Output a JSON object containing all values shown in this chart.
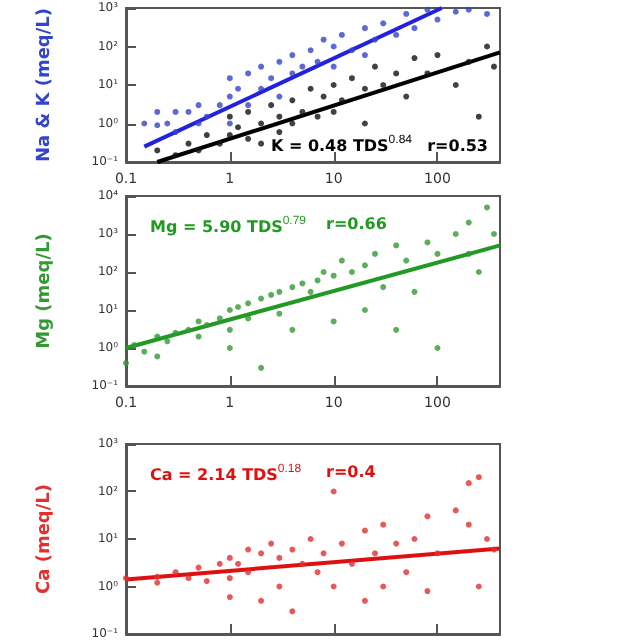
{
  "chart_data": [
    {
      "type": "scatter",
      "ylabel": "Na & K (meq/L)",
      "xlim": [
        0.1,
        400
      ],
      "ylim": [
        0.1,
        1000
      ],
      "log": "xy",
      "grid": false,
      "marker": "circle",
      "xticks": [
        0.1,
        1,
        10,
        100
      ],
      "yticks": [
        {
          "value": 0.1,
          "label": "10⁻¹"
        },
        {
          "value": 1,
          "label": "10⁰"
        },
        {
          "value": 10,
          "label": "10¹"
        },
        {
          "value": 100,
          "label": "10²"
        },
        {
          "value": 1000,
          "label": "10³"
        }
      ],
      "annotations": [
        "K = 0.48 TDS$^{0.84}$",
        "r=0.53"
      ],
      "series": [
        {
          "color": "#3344cc",
          "x": [
            0.15,
            0.2,
            0.2,
            0.25,
            0.3,
            0.3,
            0.4,
            0.5,
            0.5,
            0.6,
            0.8,
            1,
            1,
            1,
            1.2,
            1.5,
            1.5,
            2,
            2,
            2.5,
            3,
            3,
            4,
            4,
            5,
            6,
            7,
            8,
            10,
            10,
            12,
            15,
            20,
            20,
            25,
            30,
            40,
            50,
            60,
            80,
            100,
            150,
            200,
            300
          ],
          "values": [
            1,
            2,
            0.9,
            1,
            2,
            0.6,
            2,
            3,
            1,
            1.5,
            3,
            15,
            5,
            1,
            8,
            20,
            3,
            30,
            8,
            15,
            40,
            5,
            60,
            20,
            30,
            80,
            40,
            150,
            100,
            30,
            200,
            80,
            300,
            60,
            150,
            400,
            200,
            700,
            300,
            900,
            500,
            800,
            900,
            700
          ]
        },
        {
          "color": "#111111",
          "x": [
            0.2,
            0.3,
            0.4,
            0.5,
            0.6,
            0.8,
            1,
            1,
            1.2,
            1.5,
            1.5,
            2,
            2,
            2.5,
            3,
            3,
            4,
            4,
            5,
            6,
            7,
            8,
            10,
            10,
            12,
            15,
            20,
            20,
            25,
            30,
            40,
            50,
            60,
            80,
            100,
            150,
            200,
            250,
            300,
            350
          ],
          "values": [
            0.2,
            0.15,
            0.3,
            0.2,
            0.5,
            0.3,
            0.5,
            1.5,
            0.8,
            0.4,
            2,
            1,
            0.3,
            3,
            1.5,
            0.6,
            4,
            1,
            2,
            8,
            1.5,
            5,
            10,
            2,
            4,
            15,
            8,
            1,
            30,
            10,
            20,
            5,
            50,
            20,
            60,
            10,
            40,
            1.5,
            100,
            30
          ]
        },
        {
          "type": "line",
          "marker": "none",
          "color": "#2222dd",
          "x": [
            0.15,
            110
          ],
          "values": [
            0.25,
            1000
          ]
        },
        {
          "type": "line",
          "marker": "none",
          "color": "#000000",
          "x": [
            0.2,
            400
          ],
          "values": [
            0.1,
            70
          ]
        }
      ]
    },
    {
      "type": "scatter",
      "ylabel": "Mg (meq/L)",
      "xlim": [
        0.1,
        400
      ],
      "ylim": [
        0.1,
        10000
      ],
      "log": "xy",
      "grid": false,
      "marker": "circle",
      "xticks": [
        0.1,
        1,
        10,
        100
      ],
      "yticks": [
        {
          "value": 0.1,
          "label": "10⁻¹"
        },
        {
          "value": 1,
          "label": "10⁰"
        },
        {
          "value": 10,
          "label": "10¹"
        },
        {
          "value": 100,
          "label": "10²"
        },
        {
          "value": 1000,
          "label": "10³"
        },
        {
          "value": 10000,
          "label": "10⁴"
        }
      ],
      "annotations": [
        "Mg = 5.90 TDS$^{0.79}$",
        "r=0.66"
      ],
      "series": [
        {
          "color": "#339933",
          "x": [
            0.1,
            0.12,
            0.15,
            0.2,
            0.2,
            0.25,
            0.3,
            0.4,
            0.5,
            0.5,
            0.6,
            0.8,
            1,
            1,
            1,
            1.2,
            1.5,
            1.5,
            2,
            2,
            2.5,
            3,
            3,
            4,
            4,
            5,
            6,
            7,
            8,
            10,
            10,
            12,
            15,
            20,
            20,
            25,
            30,
            40,
            40,
            50,
            60,
            80,
            100,
            100,
            150,
            200,
            200,
            250,
            300,
            350
          ],
          "values": [
            0.4,
            1.2,
            0.8,
            2,
            0.6,
            1.5,
            2.5,
            3,
            2,
            5,
            4,
            6,
            10,
            3,
            1,
            12,
            15,
            6,
            20,
            0.3,
            25,
            30,
            8,
            40,
            3,
            50,
            30,
            60,
            100,
            80,
            5,
            200,
            100,
            150,
            10,
            300,
            40,
            500,
            3,
            200,
            30,
            600,
            300,
            1,
            1000,
            2000,
            300,
            100,
            5000,
            1000
          ]
        },
        {
          "type": "line",
          "marker": "none",
          "color": "#229922",
          "x": [
            0.1,
            400
          ],
          "values": [
            1,
            500
          ]
        }
      ]
    },
    {
      "type": "scatter",
      "ylabel": "Ca (meq/L)",
      "xlim": [
        0.1,
        400
      ],
      "ylim": [
        0.1,
        1000
      ],
      "log": "xy",
      "grid": false,
      "marker": "circle",
      "tick_labels": "y",
      "xticks": [
        0.1,
        1,
        10,
        100
      ],
      "yticks": [
        {
          "value": 0.1,
          "label": "10⁻¹"
        },
        {
          "value": 1,
          "label": "10⁰"
        },
        {
          "value": 10,
          "label": "10¹"
        },
        {
          "value": 100,
          "label": "10²"
        },
        {
          "value": 1000,
          "label": "10³"
        }
      ],
      "annotations": [
        "Ca = 2.14 TDS$^{0.18}$",
        "r=0.4"
      ],
      "series": [
        {
          "color": "#e03030",
          "x": [
            0.1,
            0.2,
            0.2,
            0.3,
            0.4,
            0.5,
            0.6,
            0.8,
            1,
            1,
            1,
            1.2,
            1.5,
            1.5,
            2,
            2,
            2.5,
            3,
            3,
            4,
            4,
            5,
            6,
            7,
            8,
            10,
            10,
            12,
            15,
            20,
            20,
            25,
            30,
            30,
            40,
            50,
            60,
            80,
            80,
            100,
            150,
            200,
            200,
            250,
            250,
            300,
            350
          ],
          "values": [
            1.5,
            1.6,
            1.2,
            2,
            1.5,
            2.5,
            1.3,
            3,
            4,
            1.5,
            0.6,
            3,
            6,
            2,
            5,
            0.5,
            8,
            4,
            1,
            6,
            0.3,
            3,
            10,
            2,
            5,
            100,
            1,
            8,
            3,
            15,
            0.5,
            5,
            20,
            1,
            8,
            2,
            10,
            30,
            0.8,
            5,
            40,
            20,
            150,
            200,
            1,
            10,
            6
          ]
        },
        {
          "type": "line",
          "marker": "none",
          "color": "#dd1111",
          "x": [
            0.1,
            400
          ],
          "values": [
            1.41,
            6.3
          ]
        }
      ]
    }
  ]
}
